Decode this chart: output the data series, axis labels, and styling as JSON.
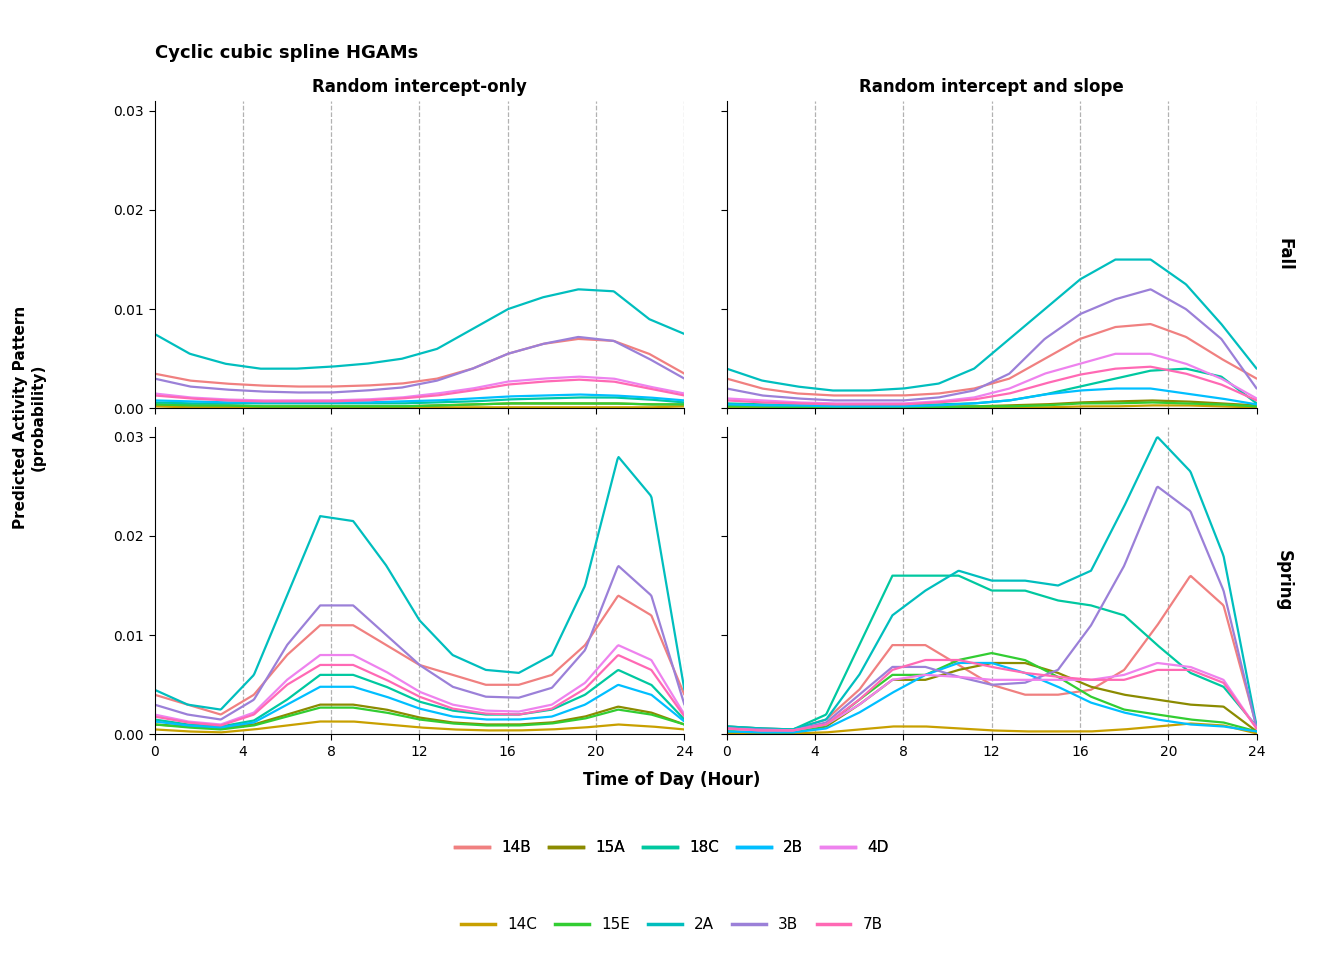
{
  "title": "Cyclic cubic spline HGAMs",
  "col_labels": [
    "Random intercept-only",
    "Random intercept and slope"
  ],
  "row_labels": [
    "Fall",
    "Spring"
  ],
  "xlabel": "Time of Day (Hour)",
  "ylabel": "Predicted Activity Pattern\n(probability)",
  "ylim": [
    0,
    0.031
  ],
  "yticks": [
    0.0,
    0.01,
    0.02,
    0.03
  ],
  "xticks": [
    0,
    4,
    8,
    12,
    16,
    20,
    24
  ],
  "vlines": [
    4,
    8,
    12,
    16,
    20,
    24
  ],
  "sites": [
    "14B",
    "14C",
    "15A",
    "15E",
    "18C",
    "2A",
    "2B",
    "3B",
    "4D",
    "7B"
  ],
  "colors": {
    "14B": "#F08080",
    "14C": "#C8A000",
    "15A": "#8B8B00",
    "15E": "#32CD32",
    "18C": "#00C8A0",
    "2A": "#00BEBE",
    "2B": "#00BFFF",
    "3B": "#9B80D8",
    "4D": "#EE82EE",
    "7B": "#FF69B4"
  },
  "legend_row1": [
    "14B",
    "15A",
    "18C",
    "2B",
    "4D"
  ],
  "legend_row2": [
    "14C",
    "15E",
    "2A",
    "3B",
    "7B"
  ],
  "panels": {
    "fall_left": {
      "x": [
        0,
        1.6,
        3.2,
        4.8,
        6.4,
        8.0,
        9.6,
        11.2,
        12.8,
        14.4,
        16.0,
        17.6,
        19.2,
        20.8,
        22.4,
        24
      ],
      "14B": [
        0.0035,
        0.0028,
        0.0025,
        0.0023,
        0.0022,
        0.0022,
        0.0023,
        0.0025,
        0.003,
        0.004,
        0.0055,
        0.0065,
        0.007,
        0.0068,
        0.0055,
        0.0035
      ],
      "14C": [
        0.0002,
        0.0001,
        0.0001,
        0.0001,
        0.0001,
        0.0001,
        0.0001,
        0.0001,
        0.0001,
        0.0001,
        0.0001,
        0.0001,
        0.0001,
        0.0001,
        0.0001,
        0.0002
      ],
      "15A": [
        0.0004,
        0.0003,
        0.0003,
        0.0002,
        0.0002,
        0.0002,
        0.0002,
        0.0002,
        0.0003,
        0.0004,
        0.0005,
        0.0005,
        0.0005,
        0.0005,
        0.0004,
        0.0004
      ],
      "15E": [
        0.0004,
        0.0003,
        0.0003,
        0.0002,
        0.0002,
        0.0002,
        0.0002,
        0.0002,
        0.0003,
        0.0004,
        0.0005,
        0.0005,
        0.0005,
        0.0005,
        0.0004,
        0.0004
      ],
      "18C": [
        0.0006,
        0.0005,
        0.0005,
        0.0005,
        0.0005,
        0.0005,
        0.0005,
        0.0005,
        0.0006,
        0.0007,
        0.0009,
        0.001,
        0.0011,
        0.0011,
        0.0009,
        0.0006
      ],
      "2A": [
        0.0075,
        0.0055,
        0.0045,
        0.004,
        0.004,
        0.0042,
        0.0045,
        0.005,
        0.006,
        0.008,
        0.01,
        0.0112,
        0.012,
        0.0118,
        0.009,
        0.0075
      ],
      "2B": [
        0.0008,
        0.0007,
        0.0006,
        0.0006,
        0.0006,
        0.0006,
        0.0006,
        0.0007,
        0.0008,
        0.001,
        0.0012,
        0.0013,
        0.0014,
        0.0013,
        0.0011,
        0.0008
      ],
      "3B": [
        0.003,
        0.0022,
        0.0019,
        0.0017,
        0.0016,
        0.0016,
        0.0018,
        0.0021,
        0.0028,
        0.004,
        0.0055,
        0.0065,
        0.0072,
        0.0068,
        0.005,
        0.003
      ],
      "4D": [
        0.0015,
        0.0011,
        0.0009,
        0.0008,
        0.0008,
        0.0008,
        0.0009,
        0.0011,
        0.0015,
        0.002,
        0.0027,
        0.003,
        0.0032,
        0.003,
        0.0022,
        0.0015
      ],
      "7B": [
        0.0013,
        0.001,
        0.0008,
        0.0007,
        0.0007,
        0.0007,
        0.0008,
        0.001,
        0.0013,
        0.0018,
        0.0024,
        0.0027,
        0.0029,
        0.0027,
        0.002,
        0.0013
      ]
    },
    "fall_right": {
      "x": [
        0,
        1.6,
        3.2,
        4.8,
        6.4,
        8.0,
        9.6,
        11.2,
        12.8,
        14.4,
        16.0,
        17.6,
        19.2,
        20.8,
        22.4,
        24
      ],
      "14B": [
        0.003,
        0.002,
        0.0015,
        0.0013,
        0.0013,
        0.0013,
        0.0015,
        0.002,
        0.003,
        0.005,
        0.007,
        0.0082,
        0.0085,
        0.0072,
        0.005,
        0.003
      ],
      "14C": [
        0.0001,
        0.0001,
        0.0001,
        0.0001,
        0.0001,
        0.0001,
        0.0001,
        0.0001,
        0.0001,
        0.0001,
        0.0002,
        0.0002,
        0.0003,
        0.0003,
        0.0002,
        0.0001
      ],
      "15A": [
        0.0003,
        0.0002,
        0.0002,
        0.0001,
        0.0001,
        0.0001,
        0.0002,
        0.0002,
        0.0003,
        0.0004,
        0.0006,
        0.0007,
        0.0008,
        0.0007,
        0.0005,
        0.0003
      ],
      "15E": [
        0.0002,
        0.0002,
        0.0001,
        0.0001,
        0.0001,
        0.0001,
        0.0001,
        0.0002,
        0.0002,
        0.0003,
        0.0005,
        0.0005,
        0.0006,
        0.0005,
        0.0004,
        0.0002
      ],
      "18C": [
        0.0005,
        0.0004,
        0.0003,
        0.0003,
        0.0003,
        0.0003,
        0.0004,
        0.0005,
        0.0008,
        0.0014,
        0.0022,
        0.003,
        0.0038,
        0.004,
        0.0032,
        0.0005
      ],
      "2A": [
        0.004,
        0.0028,
        0.0022,
        0.0018,
        0.0018,
        0.002,
        0.0025,
        0.004,
        0.007,
        0.01,
        0.013,
        0.015,
        0.015,
        0.0125,
        0.0085,
        0.004
      ],
      "2B": [
        0.0004,
        0.0003,
        0.0003,
        0.0002,
        0.0002,
        0.0002,
        0.0003,
        0.0005,
        0.0008,
        0.0014,
        0.0018,
        0.002,
        0.002,
        0.0015,
        0.001,
        0.0004
      ],
      "3B": [
        0.002,
        0.0013,
        0.001,
        0.0008,
        0.0008,
        0.0008,
        0.0011,
        0.0018,
        0.0035,
        0.007,
        0.0095,
        0.011,
        0.012,
        0.01,
        0.007,
        0.002
      ],
      "4D": [
        0.001,
        0.0008,
        0.0006,
        0.0005,
        0.0005,
        0.0005,
        0.0007,
        0.0011,
        0.002,
        0.0035,
        0.0045,
        0.0055,
        0.0055,
        0.0045,
        0.003,
        0.001
      ],
      "7B": [
        0.0008,
        0.0006,
        0.0005,
        0.0004,
        0.0004,
        0.0004,
        0.0006,
        0.0009,
        0.0015,
        0.0025,
        0.0034,
        0.004,
        0.0042,
        0.0035,
        0.0024,
        0.0008
      ]
    },
    "spring_left": {
      "x": [
        0,
        1.5,
        3.0,
        4.5,
        6.0,
        7.5,
        9.0,
        10.5,
        12.0,
        13.5,
        15.0,
        16.5,
        18.0,
        19.5,
        21.0,
        22.5,
        24
      ],
      "14B": [
        0.004,
        0.003,
        0.002,
        0.004,
        0.008,
        0.011,
        0.011,
        0.009,
        0.007,
        0.006,
        0.005,
        0.005,
        0.006,
        0.009,
        0.014,
        0.012,
        0.004
      ],
      "14C": [
        0.0005,
        0.0003,
        0.0002,
        0.0005,
        0.0009,
        0.0013,
        0.0013,
        0.001,
        0.0007,
        0.0005,
        0.0004,
        0.0004,
        0.0005,
        0.0007,
        0.001,
        0.0008,
        0.0005
      ],
      "15A": [
        0.001,
        0.0008,
        0.0006,
        0.001,
        0.002,
        0.003,
        0.003,
        0.0025,
        0.0017,
        0.0012,
        0.001,
        0.001,
        0.0012,
        0.0018,
        0.0028,
        0.0022,
        0.001
      ],
      "15E": [
        0.001,
        0.0007,
        0.0005,
        0.0009,
        0.0018,
        0.0027,
        0.0027,
        0.0022,
        0.0015,
        0.0011,
        0.0009,
        0.0009,
        0.0011,
        0.0016,
        0.0025,
        0.002,
        0.001
      ],
      "18C": [
        0.0015,
        0.001,
        0.0008,
        0.0014,
        0.0035,
        0.006,
        0.006,
        0.0048,
        0.0033,
        0.0024,
        0.002,
        0.002,
        0.0025,
        0.004,
        0.0065,
        0.005,
        0.0015
      ],
      "2A": [
        0.0045,
        0.003,
        0.0025,
        0.006,
        0.014,
        0.022,
        0.0215,
        0.017,
        0.0115,
        0.008,
        0.0065,
        0.0062,
        0.008,
        0.015,
        0.028,
        0.024,
        0.0045
      ],
      "2B": [
        0.0013,
        0.0009,
        0.0007,
        0.0012,
        0.003,
        0.0048,
        0.0048,
        0.0038,
        0.0026,
        0.0018,
        0.0015,
        0.0015,
        0.0018,
        0.003,
        0.005,
        0.004,
        0.0013
      ],
      "3B": [
        0.003,
        0.002,
        0.0015,
        0.0035,
        0.009,
        0.013,
        0.013,
        0.01,
        0.007,
        0.0048,
        0.0038,
        0.0037,
        0.0047,
        0.0085,
        0.017,
        0.014,
        0.003
      ],
      "4D": [
        0.002,
        0.0013,
        0.001,
        0.0022,
        0.0055,
        0.008,
        0.008,
        0.0063,
        0.0043,
        0.003,
        0.0024,
        0.0023,
        0.003,
        0.0052,
        0.009,
        0.0075,
        0.002
      ],
      "7B": [
        0.0018,
        0.0012,
        0.0009,
        0.002,
        0.005,
        0.007,
        0.007,
        0.0055,
        0.0038,
        0.0026,
        0.0021,
        0.002,
        0.0026,
        0.0046,
        0.008,
        0.0065,
        0.0018
      ]
    },
    "spring_right": {
      "x": [
        0,
        1.5,
        3.0,
        4.5,
        6.0,
        7.5,
        9.0,
        10.5,
        12.0,
        13.5,
        15.0,
        16.5,
        18.0,
        19.5,
        21.0,
        22.5,
        24
      ],
      "14B": [
        0.0008,
        0.0006,
        0.0005,
        0.0015,
        0.0045,
        0.009,
        0.009,
        0.007,
        0.005,
        0.004,
        0.004,
        0.0045,
        0.0065,
        0.011,
        0.016,
        0.013,
        0.0008
      ],
      "14C": [
        0.0001,
        0.0001,
        0.0001,
        0.0002,
        0.0005,
        0.0008,
        0.0008,
        0.0006,
        0.0004,
        0.0003,
        0.0003,
        0.0003,
        0.0005,
        0.0008,
        0.0011,
        0.0009,
        0.0001
      ],
      "15A": [
        0.0003,
        0.0002,
        0.0002,
        0.0008,
        0.003,
        0.0055,
        0.0055,
        0.0065,
        0.0072,
        0.0072,
        0.0062,
        0.0048,
        0.004,
        0.0035,
        0.003,
        0.0028,
        0.0003
      ],
      "15E": [
        0.0003,
        0.0002,
        0.0002,
        0.0009,
        0.0035,
        0.006,
        0.006,
        0.0075,
        0.0082,
        0.0075,
        0.0058,
        0.0038,
        0.0025,
        0.002,
        0.0015,
        0.0012,
        0.0003
      ],
      "18C": [
        0.0008,
        0.0006,
        0.0005,
        0.002,
        0.009,
        0.016,
        0.016,
        0.016,
        0.0145,
        0.0145,
        0.0135,
        0.013,
        0.012,
        0.009,
        0.0062,
        0.0048,
        0.0008
      ],
      "2A": [
        0.0008,
        0.0006,
        0.0005,
        0.0015,
        0.006,
        0.012,
        0.0145,
        0.0165,
        0.0155,
        0.0155,
        0.015,
        0.0165,
        0.023,
        0.03,
        0.0265,
        0.018,
        0.0008
      ],
      "2B": [
        0.0003,
        0.0002,
        0.0002,
        0.0006,
        0.0022,
        0.0042,
        0.006,
        0.0072,
        0.0072,
        0.0062,
        0.0048,
        0.0032,
        0.0022,
        0.0015,
        0.001,
        0.0008,
        0.0003
      ],
      "3B": [
        0.0006,
        0.0005,
        0.0004,
        0.0012,
        0.004,
        0.0068,
        0.0068,
        0.0058,
        0.005,
        0.0052,
        0.0065,
        0.011,
        0.017,
        0.025,
        0.0225,
        0.0145,
        0.0006
      ],
      "4D": [
        0.0006,
        0.0004,
        0.0004,
        0.001,
        0.003,
        0.0055,
        0.006,
        0.0058,
        0.0055,
        0.0055,
        0.0055,
        0.0055,
        0.006,
        0.0072,
        0.0068,
        0.0055,
        0.0006
      ],
      "7B": [
        0.0006,
        0.0004,
        0.0004,
        0.001,
        0.0035,
        0.0065,
        0.0075,
        0.0075,
        0.0068,
        0.0062,
        0.0058,
        0.0055,
        0.0055,
        0.0065,
        0.0065,
        0.0052,
        0.0006
      ]
    }
  }
}
